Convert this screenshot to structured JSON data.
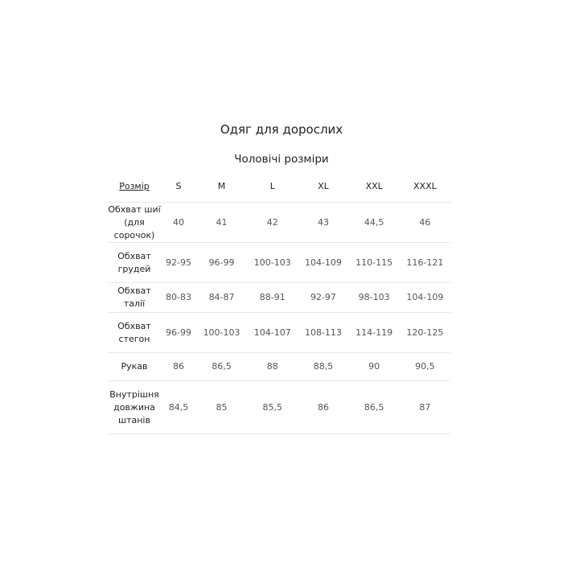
{
  "title": "Одяг для дорослих",
  "subtitle": "Чоловічі розміри",
  "table": {
    "header": [
      "Розмір",
      "S",
      "M",
      "L",
      "XL",
      "XXL",
      "XXXL"
    ],
    "rows": [
      {
        "label": "Обхват шиї (для сорочок)",
        "values": [
          "40",
          "41",
          "42",
          "43",
          "44,5",
          "46"
        ]
      },
      {
        "label": "Обхват грудей",
        "values": [
          "92-95",
          "96-99",
          "100-103",
          "104-109",
          "110-115",
          "116-121"
        ]
      },
      {
        "label": "Обхват талії",
        "values": [
          "80-83",
          "84-87",
          "88-91",
          "92-97",
          "98-103",
          "104-109"
        ]
      },
      {
        "label": "Обхват стегон",
        "values": [
          "96-99",
          "100-103",
          "104-107",
          "108-113",
          "114-119",
          "120-125"
        ]
      },
      {
        "label": "Рукав",
        "values": [
          "86",
          "86,5",
          "88",
          "88,5",
          "90",
          "90,5"
        ]
      },
      {
        "label": "Внутрішня довжина штанів",
        "values": [
          "84,5",
          "85",
          "85,5",
          "86",
          "86,5",
          "87"
        ]
      }
    ]
  }
}
